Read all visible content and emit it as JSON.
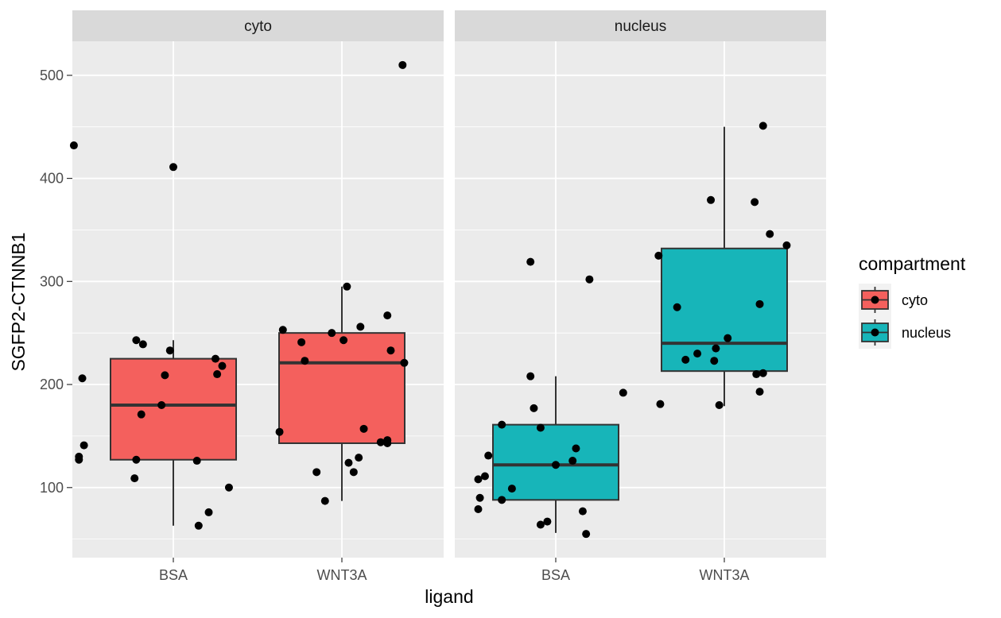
{
  "chart_data": {
    "type": "boxplot",
    "facet_labels": [
      "cyto",
      "nucleus"
    ],
    "xlabel": "ligand",
    "ylabel": "SGFP2-CTNNB1",
    "categories": [
      "BSA",
      "WNT3A"
    ],
    "yticks": [
      100,
      200,
      300,
      400,
      500
    ],
    "ylim": [
      32,
      533
    ],
    "grid": true,
    "legend": {
      "title": "compartment",
      "position": "right",
      "entries": [
        {
          "label": "cyto",
          "color": "#F4605D"
        },
        {
          "label": "nucleus",
          "color": "#17B5B9"
        }
      ]
    },
    "panels": [
      {
        "facet": "cyto",
        "fill": "#F4605D",
        "boxes": [
          {
            "category": "BSA",
            "stats": {
              "min": 63,
              "q1": 127,
              "median": 180,
              "q3": 225,
              "max": 243
            },
            "points": [
              {
                "x": 0.41,
                "y": 432
              },
              {
                "x": 1.0,
                "y": 411
              },
              {
                "x": 0.78,
                "y": 243
              },
              {
                "x": 0.82,
                "y": 239
              },
              {
                "x": 0.98,
                "y": 233
              },
              {
                "x": 1.25,
                "y": 225
              },
              {
                "x": 1.29,
                "y": 218
              },
              {
                "x": 1.26,
                "y": 210
              },
              {
                "x": 0.95,
                "y": 209
              },
              {
                "x": 0.46,
                "y": 206
              },
              {
                "x": 0.93,
                "y": 180
              },
              {
                "x": 0.81,
                "y": 171
              },
              {
                "x": 0.47,
                "y": 141
              },
              {
                "x": 0.44,
                "y": 130
              },
              {
                "x": 0.44,
                "y": 127
              },
              {
                "x": 0.78,
                "y": 127
              },
              {
                "x": 1.14,
                "y": 126
              },
              {
                "x": 0.77,
                "y": 109
              },
              {
                "x": 1.33,
                "y": 100
              },
              {
                "x": 1.21,
                "y": 76
              },
              {
                "x": 1.15,
                "y": 63
              }
            ]
          },
          {
            "category": "WNT3A",
            "stats": {
              "min": 87,
              "q1": 143,
              "median": 221,
              "q3": 250,
              "max": 295
            },
            "points": [
              {
                "x": 2.36,
                "y": 510
              },
              {
                "x": 2.03,
                "y": 295
              },
              {
                "x": 2.27,
                "y": 267
              },
              {
                "x": 2.11,
                "y": 256
              },
              {
                "x": 1.65,
                "y": 253
              },
              {
                "x": 1.94,
                "y": 250
              },
              {
                "x": 2.01,
                "y": 243
              },
              {
                "x": 1.76,
                "y": 241
              },
              {
                "x": 2.29,
                "y": 233
              },
              {
                "x": 1.78,
                "y": 223
              },
              {
                "x": 2.37,
                "y": 221
              },
              {
                "x": 2.13,
                "y": 157
              },
              {
                "x": 1.63,
                "y": 154
              },
              {
                "x": 2.27,
                "y": 146
              },
              {
                "x": 2.23,
                "y": 144
              },
              {
                "x": 2.27,
                "y": 143
              },
              {
                "x": 2.1,
                "y": 129
              },
              {
                "x": 2.04,
                "y": 124
              },
              {
                "x": 2.07,
                "y": 115
              },
              {
                "x": 1.85,
                "y": 115
              },
              {
                "x": 1.9,
                "y": 87
              }
            ]
          }
        ]
      },
      {
        "facet": "nucleus",
        "fill": "#17B5B9",
        "boxes": [
          {
            "category": "BSA",
            "stats": {
              "min": 56,
              "q1": 88,
              "median": 122,
              "q3": 161,
              "max": 208
            },
            "points": [
              {
                "x": 0.85,
                "y": 319
              },
              {
                "x": 1.2,
                "y": 302
              },
              {
                "x": 0.85,
                "y": 208
              },
              {
                "x": 1.4,
                "y": 192
              },
              {
                "x": 0.87,
                "y": 177
              },
              {
                "x": 0.68,
                "y": 161
              },
              {
                "x": 0.91,
                "y": 158
              },
              {
                "x": 1.12,
                "y": 138
              },
              {
                "x": 0.6,
                "y": 131
              },
              {
                "x": 1.1,
                "y": 126
              },
              {
                "x": 1.0,
                "y": 122
              },
              {
                "x": 0.58,
                "y": 111
              },
              {
                "x": 0.54,
                "y": 108
              },
              {
                "x": 0.74,
                "y": 99
              },
              {
                "x": 0.55,
                "y": 90
              },
              {
                "x": 0.68,
                "y": 88
              },
              {
                "x": 0.54,
                "y": 79
              },
              {
                "x": 1.16,
                "y": 77
              },
              {
                "x": 0.95,
                "y": 67
              },
              {
                "x": 0.91,
                "y": 64
              },
              {
                "x": 1.18,
                "y": 55
              }
            ]
          },
          {
            "category": "WNT3A",
            "stats": {
              "min": 179,
              "q1": 213,
              "median": 240,
              "q3": 332,
              "max": 450
            },
            "points": [
              {
                "x": 2.23,
                "y": 451
              },
              {
                "x": 1.92,
                "y": 379
              },
              {
                "x": 2.18,
                "y": 377
              },
              {
                "x": 2.27,
                "y": 346
              },
              {
                "x": 2.37,
                "y": 335
              },
              {
                "x": 1.61,
                "y": 325
              },
              {
                "x": 2.21,
                "y": 278
              },
              {
                "x": 1.72,
                "y": 275
              },
              {
                "x": 2.02,
                "y": 245
              },
              {
                "x": 1.95,
                "y": 235
              },
              {
                "x": 1.84,
                "y": 230
              },
              {
                "x": 1.77,
                "y": 224
              },
              {
                "x": 1.94,
                "y": 223
              },
              {
                "x": 2.23,
                "y": 211
              },
              {
                "x": 2.19,
                "y": 210
              },
              {
                "x": 2.21,
                "y": 193
              },
              {
                "x": 1.62,
                "y": 181
              },
              {
                "x": 1.97,
                "y": 180
              }
            ]
          }
        ]
      }
    ]
  }
}
